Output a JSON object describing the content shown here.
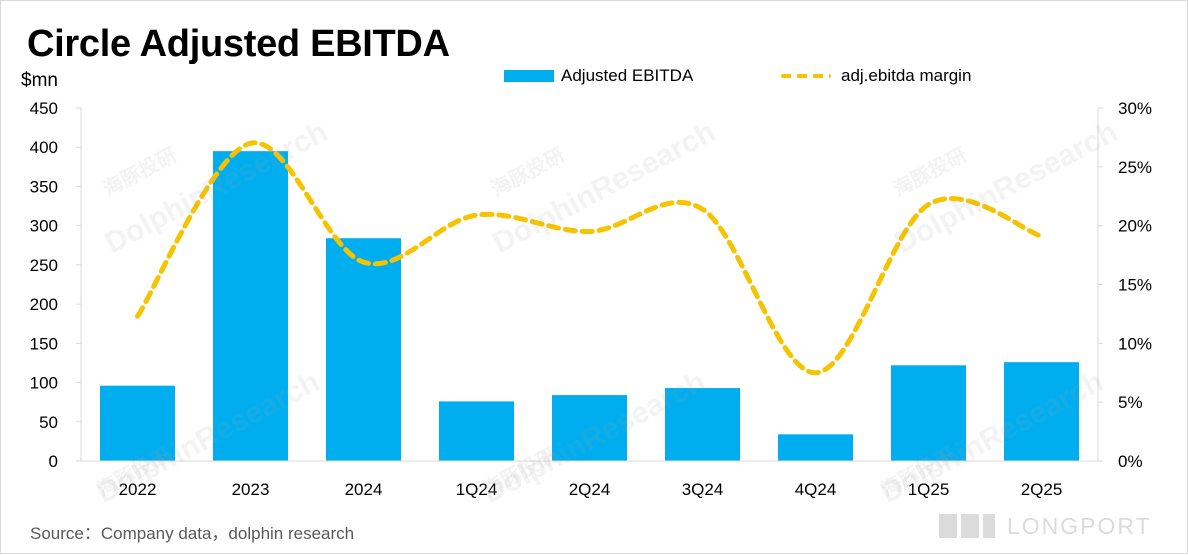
{
  "chart_data": {
    "type": "bar",
    "title": "Circle Adjusted EBITDA",
    "y_unit_label": "$mn",
    "categories": [
      "2022",
      "2023",
      "2024",
      "1Q24",
      "2Q24",
      "3Q24",
      "4Q24",
      "1Q25",
      "2Q25"
    ],
    "series": [
      {
        "name": "Adjusted EBITDA",
        "type": "bar",
        "axis": "left",
        "values": [
          96,
          395,
          284,
          76,
          84,
          93,
          34,
          122,
          126
        ]
      },
      {
        "name": "adj.ebitda margin",
        "type": "line",
        "axis": "right",
        "style": "dashed-smooth",
        "values": [
          12.3,
          27.0,
          16.9,
          20.9,
          19.5,
          21.4,
          7.5,
          21.8,
          19.1
        ]
      }
    ],
    "y_left": {
      "min": 0,
      "max": 450,
      "tick_labels": [
        "450",
        "400",
        "350",
        "300",
        "250",
        "200",
        "150",
        "100",
        "50",
        "0"
      ]
    },
    "y_right": {
      "min": 0,
      "max": 30,
      "tick_labels": [
        "30%",
        "25%",
        "20%",
        "15%",
        "10%",
        "5%",
        "0%"
      ]
    },
    "grid": false,
    "legend": "top-center",
    "colors": {
      "bar": "#00aeef",
      "line": "#f6c300",
      "axis": "#d9d9d9",
      "text": "#000000",
      "source": "#595959"
    },
    "source": "Source：Company data，dolphin research"
  },
  "watermarks": [
    "海豚投研",
    "DolphinResearch",
    "LONGPORT"
  ]
}
